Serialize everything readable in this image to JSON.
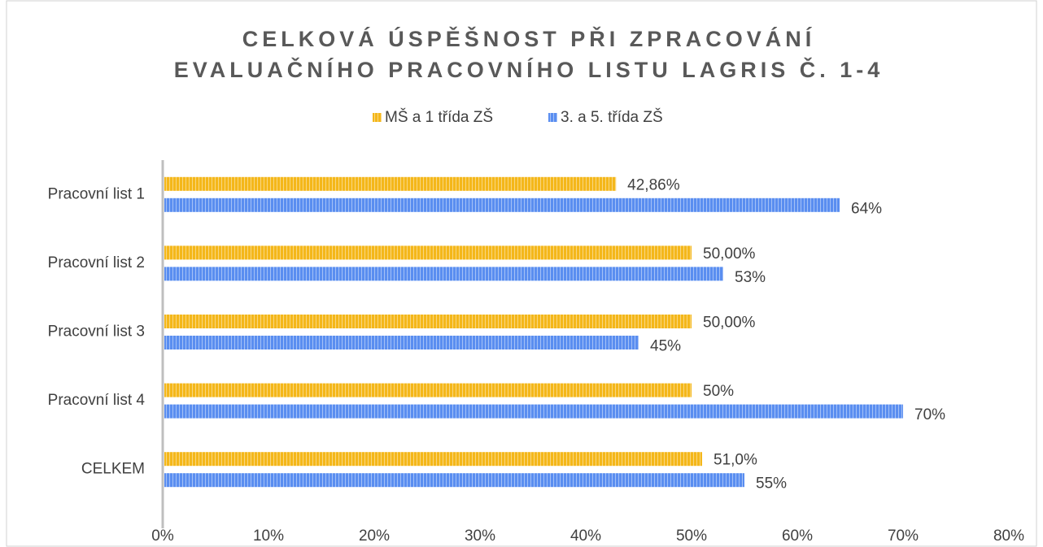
{
  "chart_data": {
    "type": "hbar",
    "title": [
      "CELKOVÁ ÚSPĚŠNOST PŘI ZPRACOVÁNÍ",
      "EVALUAČNÍHO PRACOVNÍHO LISTU LAGRIS Č. 1-4"
    ],
    "categories": [
      "Pracovní list 1",
      "Pracovní list 2",
      "Pracovní list 3",
      "Pracovní list 4",
      "CELKEM"
    ],
    "series": [
      {
        "name": "MŠ a 1 třída ZŠ",
        "color": "#f4b71a",
        "values": [
          42.86,
          50,
          50,
          50,
          51
        ],
        "value_labels": [
          "42,86%",
          "50,00%",
          "50,00%",
          "50%",
          "51,0%"
        ]
      },
      {
        "name": "3. a 5. třída ZŠ",
        "color": "#5a8ef0",
        "values": [
          64,
          53,
          45,
          70,
          55
        ],
        "value_labels": [
          "64%",
          "53%",
          "45%",
          "70%",
          "55%"
        ]
      }
    ],
    "xlim": [
      0,
      80
    ],
    "xticks": [
      {
        "value": 0,
        "label": "0%"
      },
      {
        "value": 10,
        "label": "10%"
      },
      {
        "value": 20,
        "label": "20%"
      },
      {
        "value": 30,
        "label": "30%"
      },
      {
        "value": 40,
        "label": "40%"
      },
      {
        "value": 50,
        "label": "50%"
      },
      {
        "value": 60,
        "label": "60%"
      },
      {
        "value": 70,
        "label": "70%"
      },
      {
        "value": 80,
        "label": "80%"
      }
    ],
    "legend": "top"
  }
}
